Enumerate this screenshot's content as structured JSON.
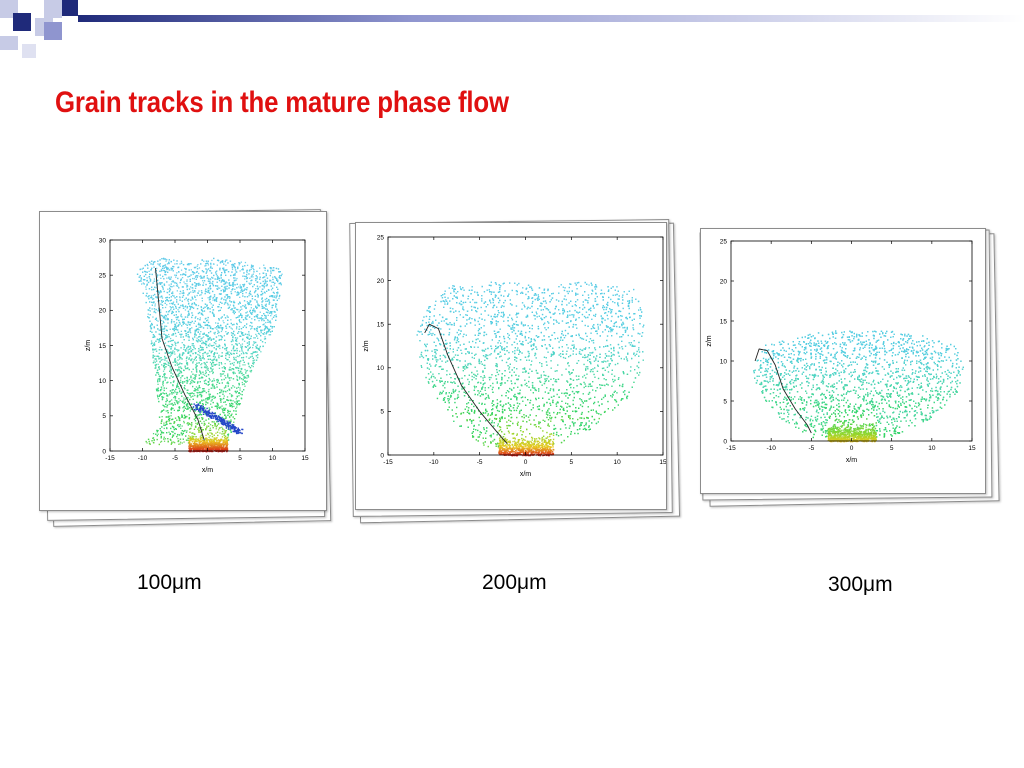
{
  "slide": {
    "title": "Grain tracks in the mature phase flow",
    "title_color": "#e01010",
    "decoration_colors": [
      "#1f2a7a",
      "#8f95cf",
      "#c7cbe6"
    ]
  },
  "chart_data": [
    {
      "type": "scatter",
      "caption": "100μm",
      "xlabel": "x/m",
      "ylabel": "z/m",
      "xlim": [
        -15,
        15
      ],
      "ylim": [
        0,
        30
      ],
      "xticks": [
        -15,
        -10,
        -5,
        0,
        5,
        10,
        15
      ],
      "yticks": [
        0,
        5,
        10,
        15,
        20,
        25,
        30
      ],
      "grid": false,
      "envelope": [
        [
          -10,
          1
        ],
        [
          -8,
          3
        ],
        [
          -7.5,
          6
        ],
        [
          -8,
          9
        ],
        [
          -8.5,
          13
        ],
        [
          -9,
          18
        ],
        [
          -10,
          22
        ],
        [
          -11,
          25.5
        ],
        [
          -9,
          27
        ],
        [
          -7,
          27.5
        ],
        [
          -3,
          27
        ],
        [
          1,
          27.5
        ],
        [
          5,
          27
        ],
        [
          9,
          26.5
        ],
        [
          11.5,
          26
        ],
        [
          11,
          21
        ],
        [
          10,
          17
        ],
        [
          8,
          14
        ],
        [
          6,
          10
        ],
        [
          5,
          7
        ],
        [
          4,
          4
        ],
        [
          3,
          1
        ]
      ],
      "color_profile": [
        [
          0,
          "#d81b1b"
        ],
        [
          1.5,
          "#e8c81c"
        ],
        [
          2.5,
          "#8ed62c"
        ],
        [
          5,
          "#2fd45c"
        ],
        [
          10,
          "#43d78e"
        ],
        [
          14,
          "#4fd5c0"
        ],
        [
          18,
          "#52cde0"
        ],
        [
          30,
          "#5ec8ea"
        ]
      ],
      "hotspot": [
        0,
        1.5
      ],
      "track": [
        [
          -8,
          26
        ],
        [
          -7.5,
          21
        ],
        [
          -7,
          16
        ],
        [
          -5.5,
          12
        ],
        [
          -3.5,
          8
        ],
        [
          -1.5,
          4.5
        ],
        [
          -0.5,
          1.5
        ]
      ],
      "blue_streak": [
        [
          -2,
          6.5
        ],
        [
          0,
          5.5
        ],
        [
          2,
          4.5
        ],
        [
          3.5,
          3.5
        ],
        [
          5,
          2.8
        ]
      ]
    },
    {
      "type": "scatter",
      "caption": "200μm",
      "xlabel": "x/m",
      "ylabel": "z/m",
      "xlim": [
        -15,
        15
      ],
      "ylim": [
        0,
        25
      ],
      "xticks": [
        -15,
        -10,
        -5,
        0,
        5,
        10,
        15
      ],
      "yticks": [
        0,
        5,
        10,
        15,
        20,
        25
      ],
      "grid": false,
      "envelope": [
        [
          -5,
          1
        ],
        [
          -7.5,
          3
        ],
        [
          -10,
          7
        ],
        [
          -11.5,
          10
        ],
        [
          -12,
          14
        ],
        [
          -10.5,
          18
        ],
        [
          -8,
          19.5
        ],
        [
          -3,
          20
        ],
        [
          2,
          19.5
        ],
        [
          7,
          20
        ],
        [
          12,
          19
        ],
        [
          13,
          15
        ],
        [
          13,
          11
        ],
        [
          11.5,
          7
        ],
        [
          7,
          3
        ],
        [
          3,
          1
        ]
      ],
      "color_profile": [
        [
          0,
          "#d81b1b"
        ],
        [
          1,
          "#e8c81c"
        ],
        [
          2.5,
          "#8ed62c"
        ],
        [
          5,
          "#2fd45c"
        ],
        [
          8,
          "#43d78e"
        ],
        [
          11,
          "#4fd5c0"
        ],
        [
          14,
          "#52cde0"
        ],
        [
          25,
          "#5ec8ea"
        ]
      ],
      "hotspot": [
        0,
        1
      ],
      "track": [
        [
          -11,
          14
        ],
        [
          -10.5,
          15
        ],
        [
          -9.5,
          14.5
        ],
        [
          -8.5,
          11.5
        ],
        [
          -7,
          8
        ],
        [
          -5,
          5
        ],
        [
          -3,
          2.5
        ],
        [
          -2,
          1.3
        ]
      ],
      "blue_streak": []
    },
    {
      "type": "scatter",
      "caption": "300μm",
      "xlabel": "x/m",
      "ylabel": "z/m",
      "xlim": [
        -15,
        15
      ],
      "ylim": [
        0,
        25
      ],
      "xticks": [
        -15,
        -10,
        -5,
        0,
        5,
        10,
        15
      ],
      "yticks": [
        0,
        5,
        10,
        15,
        20,
        25
      ],
      "grid": false,
      "envelope": [
        [
          -5,
          0.5
        ],
        [
          -9,
          3
        ],
        [
          -11.5,
          6
        ],
        [
          -12.5,
          9
        ],
        [
          -11,
          12
        ],
        [
          -7,
          13
        ],
        [
          -3,
          14
        ],
        [
          3,
          14
        ],
        [
          8,
          13.5
        ],
        [
          13,
          12
        ],
        [
          14,
          9
        ],
        [
          13,
          6
        ],
        [
          10,
          3
        ],
        [
          5,
          0.5
        ]
      ],
      "color_profile": [
        [
          0,
          "#e8c81c"
        ],
        [
          1,
          "#8ed62c"
        ],
        [
          3,
          "#2fd45c"
        ],
        [
          5,
          "#43d78e"
        ],
        [
          8,
          "#4fd5c0"
        ],
        [
          11,
          "#52cde0"
        ],
        [
          25,
          "#5ec8ea"
        ]
      ],
      "hotspot": [
        0,
        1
      ],
      "track": [
        [
          -12,
          10
        ],
        [
          -11.5,
          11.5
        ],
        [
          -10.5,
          11.3
        ],
        [
          -9.5,
          9.5
        ],
        [
          -8.5,
          6.5
        ],
        [
          -7,
          4
        ],
        [
          -5.5,
          2
        ],
        [
          -5,
          1
        ]
      ],
      "blue_streak": []
    }
  ]
}
